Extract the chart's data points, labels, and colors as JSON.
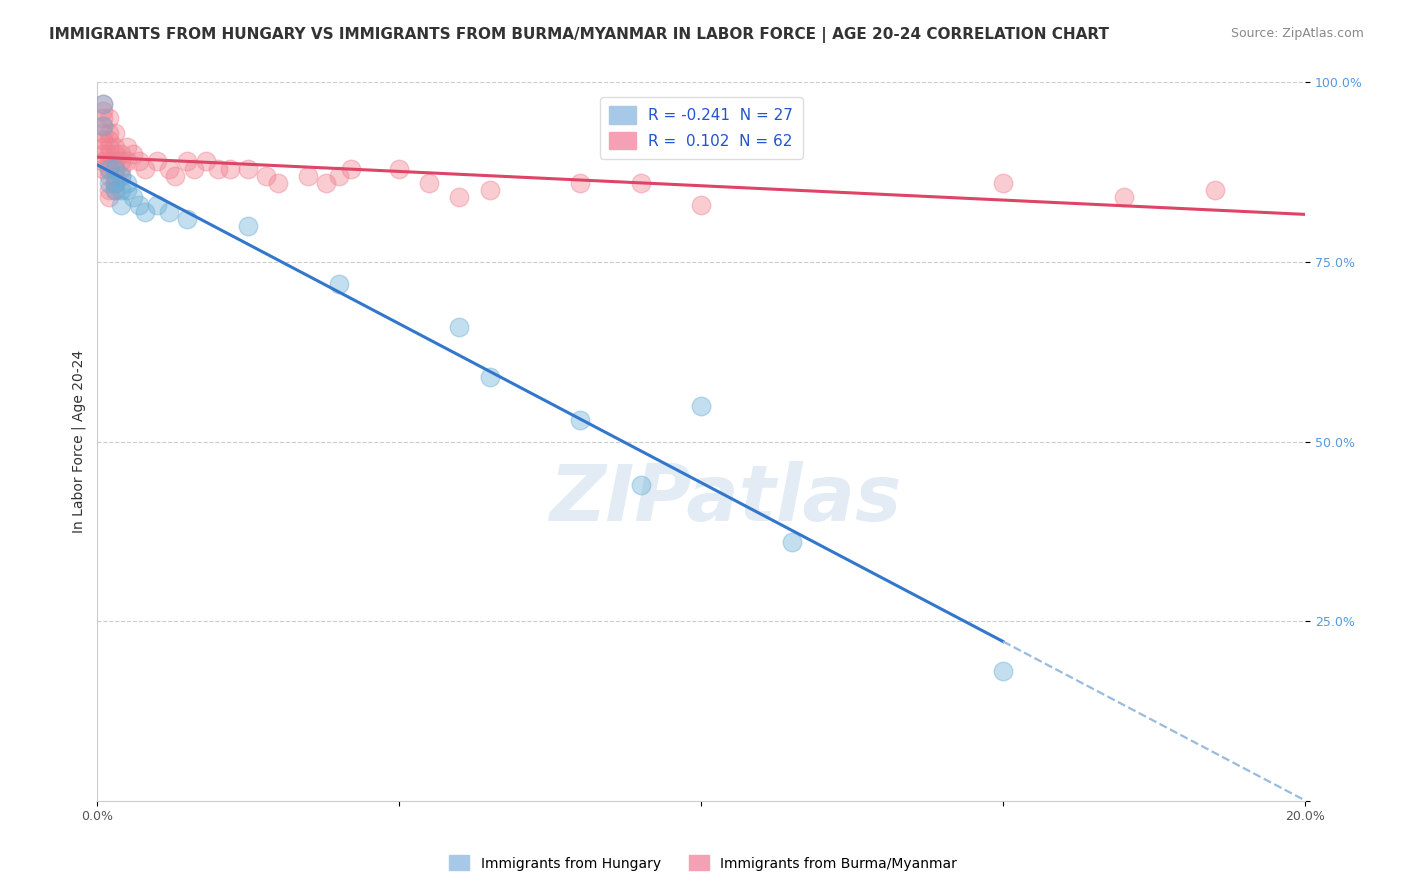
{
  "title": "IMMIGRANTS FROM HUNGARY VS IMMIGRANTS FROM BURMA/MYANMAR IN LABOR FORCE | AGE 20-24 CORRELATION CHART",
  "source": "Source: ZipAtlas.com",
  "xlabel": "",
  "ylabel": "In Labor Force | Age 20-24",
  "xlim": [
    0.0,
    0.2
  ],
  "ylim": [
    0.0,
    1.0
  ],
  "x_ticks": [
    0.0,
    0.05,
    0.1,
    0.15,
    0.2
  ],
  "x_tick_labels": [
    "0.0%",
    "",
    "",
    "",
    "20.0%"
  ],
  "y_ticks": [
    0.0,
    0.25,
    0.5,
    0.75,
    1.0
  ],
  "y_tick_labels": [
    "",
    "25.0%",
    "50.0%",
    "75.0%",
    "100.0%"
  ],
  "hungary_color": "#6aaed6",
  "burma_color": "#f08090",
  "background_color": "#ffffff",
  "grid_color": "#cccccc",
  "hungary_points": [
    [
      0.001,
      0.97
    ],
    [
      0.001,
      0.94
    ],
    [
      0.002,
      0.88
    ],
    [
      0.002,
      0.86
    ],
    [
      0.003,
      0.88
    ],
    [
      0.003,
      0.86
    ],
    [
      0.003,
      0.85
    ],
    [
      0.004,
      0.87
    ],
    [
      0.004,
      0.85
    ],
    [
      0.004,
      0.83
    ],
    [
      0.005,
      0.86
    ],
    [
      0.005,
      0.85
    ],
    [
      0.006,
      0.84
    ],
    [
      0.007,
      0.83
    ],
    [
      0.008,
      0.82
    ],
    [
      0.01,
      0.83
    ],
    [
      0.012,
      0.82
    ],
    [
      0.015,
      0.81
    ],
    [
      0.025,
      0.8
    ],
    [
      0.04,
      0.72
    ],
    [
      0.06,
      0.66
    ],
    [
      0.065,
      0.59
    ],
    [
      0.08,
      0.53
    ],
    [
      0.1,
      0.55
    ],
    [
      0.09,
      0.44
    ],
    [
      0.115,
      0.36
    ],
    [
      0.15,
      0.18
    ]
  ],
  "burma_points": [
    [
      0.001,
      0.97
    ],
    [
      0.001,
      0.96
    ],
    [
      0.001,
      0.95
    ],
    [
      0.001,
      0.94
    ],
    [
      0.001,
      0.93
    ],
    [
      0.001,
      0.92
    ],
    [
      0.001,
      0.91
    ],
    [
      0.001,
      0.9
    ],
    [
      0.001,
      0.89
    ],
    [
      0.001,
      0.88
    ],
    [
      0.002,
      0.95
    ],
    [
      0.002,
      0.93
    ],
    [
      0.002,
      0.92
    ],
    [
      0.002,
      0.91
    ],
    [
      0.002,
      0.9
    ],
    [
      0.002,
      0.89
    ],
    [
      0.002,
      0.88
    ],
    [
      0.002,
      0.87
    ],
    [
      0.002,
      0.85
    ],
    [
      0.002,
      0.84
    ],
    [
      0.003,
      0.93
    ],
    [
      0.003,
      0.91
    ],
    [
      0.003,
      0.9
    ],
    [
      0.003,
      0.89
    ],
    [
      0.003,
      0.88
    ],
    [
      0.003,
      0.87
    ],
    [
      0.003,
      0.86
    ],
    [
      0.003,
      0.85
    ],
    [
      0.004,
      0.9
    ],
    [
      0.004,
      0.89
    ],
    [
      0.004,
      0.88
    ],
    [
      0.004,
      0.87
    ],
    [
      0.005,
      0.91
    ],
    [
      0.005,
      0.89
    ],
    [
      0.006,
      0.9
    ],
    [
      0.007,
      0.89
    ],
    [
      0.008,
      0.88
    ],
    [
      0.01,
      0.89
    ],
    [
      0.012,
      0.88
    ],
    [
      0.013,
      0.87
    ],
    [
      0.015,
      0.89
    ],
    [
      0.016,
      0.88
    ],
    [
      0.018,
      0.89
    ],
    [
      0.02,
      0.88
    ],
    [
      0.022,
      0.88
    ],
    [
      0.025,
      0.88
    ],
    [
      0.028,
      0.87
    ],
    [
      0.03,
      0.86
    ],
    [
      0.035,
      0.87
    ],
    [
      0.038,
      0.86
    ],
    [
      0.04,
      0.87
    ],
    [
      0.042,
      0.88
    ],
    [
      0.05,
      0.88
    ],
    [
      0.055,
      0.86
    ],
    [
      0.06,
      0.84
    ],
    [
      0.065,
      0.85
    ],
    [
      0.08,
      0.86
    ],
    [
      0.09,
      0.86
    ],
    [
      0.1,
      0.83
    ],
    [
      0.15,
      0.86
    ],
    [
      0.17,
      0.84
    ],
    [
      0.185,
      0.85
    ]
  ],
  "title_fontsize": 11,
  "axis_label_fontsize": 10,
  "tick_fontsize": 9,
  "legend_fontsize": 11
}
